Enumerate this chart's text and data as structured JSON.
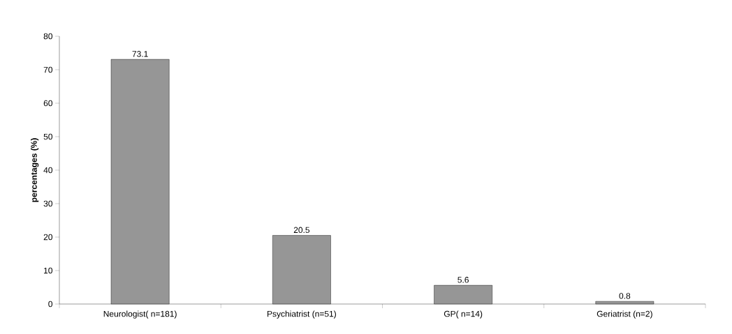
{
  "chart_data": {
    "type": "bar",
    "ylabel": "percentages (%)",
    "categories": [
      "Neurologist( n=181)",
      "Psychiatrist (n=51)",
      "GP( n=14)",
      "Geriatrist (n=2)"
    ],
    "values": [
      73.1,
      20.5,
      5.6,
      0.8
    ],
    "color": "#969696",
    "data_labels": true,
    "ylim": [
      0,
      80
    ],
    "yticks": [
      0,
      10,
      20,
      30,
      40,
      50,
      60,
      70,
      80
    ]
  }
}
